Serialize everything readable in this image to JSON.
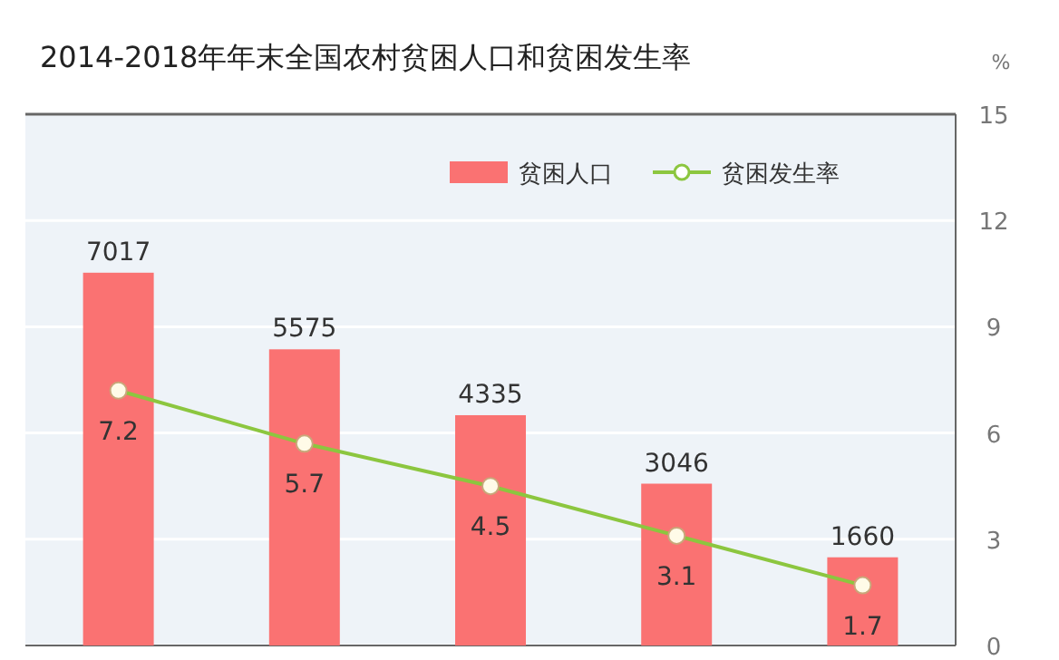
{
  "chart_data": {
    "type": "bar",
    "title": "2014-2018年年末全国农村贫困人口和贫困发生率",
    "categories": [
      null,
      null,
      null,
      null,
      null
    ],
    "series": [
      {
        "name": "贫困人口",
        "color": "#fa7272",
        "values": [
          7017,
          5575,
          4335,
          3046,
          1660
        ]
      },
      {
        "name": "贫困发生率",
        "type": "line",
        "axis": "y2",
        "marker": "circle",
        "color": "#8cc63f",
        "values": [
          7.2,
          5.7,
          4.5,
          3.1,
          1.7
        ]
      }
    ],
    "ylim": [
      0,
      10000
    ],
    "y2lim": [
      0,
      15
    ],
    "y2ticks": [
      0,
      3,
      6,
      9,
      12,
      15
    ],
    "y2label": "%",
    "data_labels": true,
    "legend": "top right",
    "grid": "y"
  }
}
